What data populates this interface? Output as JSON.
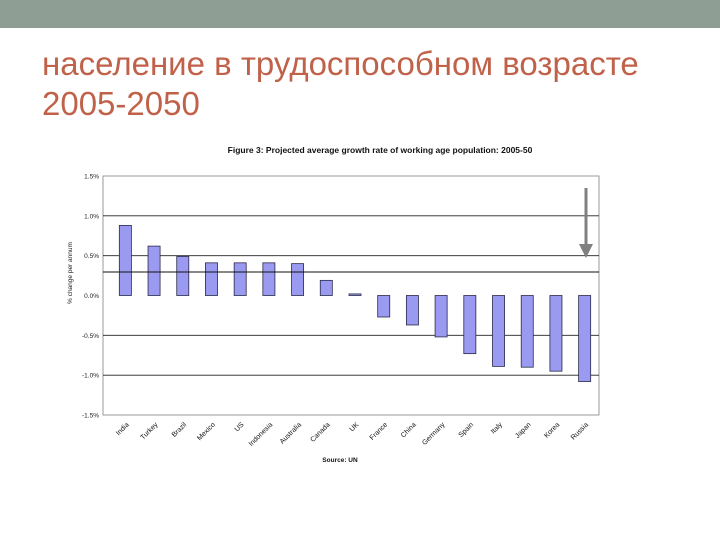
{
  "slide": {
    "title_line1": "население в трудоспособном возрасте",
    "title_line2": "2005-2050"
  },
  "colors": {
    "top_band": "#8f9e95",
    "title": "#c0624a",
    "bar_fill": "#9a9bf0",
    "bar_stroke": "#2a2a4a",
    "arrow": "#808080"
  },
  "chart_data": {
    "type": "bar",
    "title": "Figure 3: Projected average growth rate of working age population: 2005-50",
    "ylabel": "% change per annum",
    "xlabel": "",
    "source": "Source: UN",
    "ylim": [
      -1.5,
      1.5
    ],
    "yticks": [
      1.5,
      1.0,
      0.5,
      0.0,
      -0.5,
      -1.0,
      -1.5
    ],
    "ytick_labels": [
      "1.5%",
      "1.0%",
      "0.5%",
      "0.0%",
      "-0.5%",
      "-1.0%",
      "-1.5%"
    ],
    "grid": true,
    "categories": [
      "India",
      "Turkey",
      "Brazil",
      "Mexico",
      "US",
      "Indonesia",
      "Australia",
      "Canada",
      "UK",
      "France",
      "China",
      "Germany",
      "Spain",
      "Italy",
      "Japan",
      "Korea",
      "Russia"
    ],
    "values": [
      0.88,
      0.62,
      0.49,
      0.41,
      0.41,
      0.41,
      0.4,
      0.19,
      0.02,
      -0.27,
      -0.37,
      -0.52,
      -0.73,
      -0.89,
      -0.9,
      -0.95,
      -1.08
    ],
    "annotation": "arrow-pointing-down"
  }
}
